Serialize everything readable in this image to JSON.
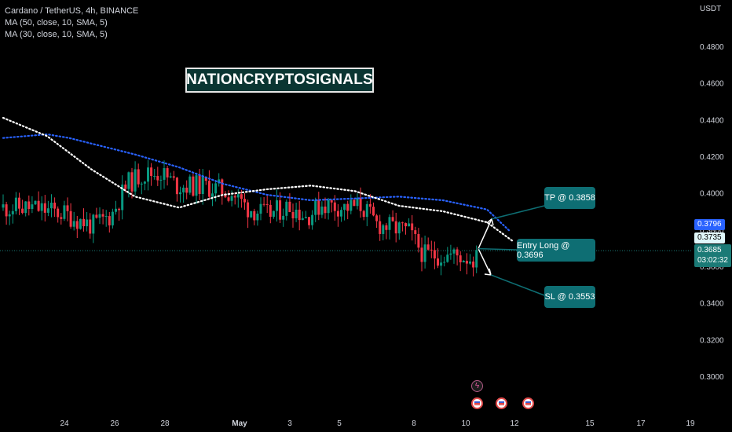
{
  "legend": {
    "symbol": "Cardano / TetherUS, 4h, BINANCE",
    "ma50": "MA (50, close, 10, SMA, 5)",
    "ma30": "MA (30, close, 10, SMA, 5)"
  },
  "brand_text": "NATIONCRYPTOSIGNALS",
  "currency": "USDT",
  "price_labels": {
    "ma50_value": "0.3796",
    "ma30_value": "0.3735",
    "last_price": "0.3685",
    "countdown": "03:02:32"
  },
  "annotations": {
    "tp": "TP @ 0.3858",
    "entry": "Entry Long @ 0.3696",
    "sl": "SL @ 0.3553"
  },
  "colors": {
    "up": "#089981",
    "down": "#f23645",
    "ma50": "#2962ff",
    "ma30": "#ffffff",
    "callout": "#0e6e73",
    "price_line": "#1b7a76"
  },
  "events": [
    "flash-icon",
    "us-flag-icon",
    "us-flag-icon",
    "us-flag-icon"
  ],
  "chart_data": {
    "type": "candlestick",
    "title": "Cardano / TetherUS, 4h, BINANCE",
    "y_ticks": [
      "0.4800",
      "0.4600",
      "0.4400",
      "0.4200",
      "0.4000",
      "0.3800",
      "0.3600",
      "0.3400",
      "0.3200",
      "0.3000"
    ],
    "x_ticks": [
      "24",
      "26",
      "28",
      "May",
      "3",
      "5",
      "8",
      "10",
      "12",
      "15",
      "17",
      "19"
    ],
    "ylim": [
      0.293,
      0.508
    ],
    "last_price": 0.3685,
    "series": [
      {
        "name": "MA (50, close, 10, SMA, 5)",
        "kind": "line",
        "style": "dotted",
        "x": [
          0,
          1,
          1.5,
          2,
          3,
          4,
          5,
          6,
          7,
          8,
          9,
          10,
          11,
          11.5
        ],
        "y": [
          0.43,
          0.432,
          0.43,
          0.427,
          0.421,
          0.414,
          0.405,
          0.399,
          0.396,
          0.397,
          0.398,
          0.396,
          0.391,
          0.3796
        ]
      },
      {
        "name": "MA (30, close, 10, SMA, 5)",
        "kind": "line",
        "style": "dotted",
        "x": [
          0,
          1,
          2,
          3,
          4,
          5,
          6,
          7,
          8,
          9,
          10,
          11,
          11.6
        ],
        "y": [
          0.441,
          0.431,
          0.413,
          0.398,
          0.392,
          0.399,
          0.402,
          0.404,
          0.401,
          0.393,
          0.39,
          0.384,
          0.3735
        ]
      }
    ],
    "trade": {
      "tp": 0.3858,
      "entry": 0.3696,
      "sl": 0.3553
    }
  }
}
